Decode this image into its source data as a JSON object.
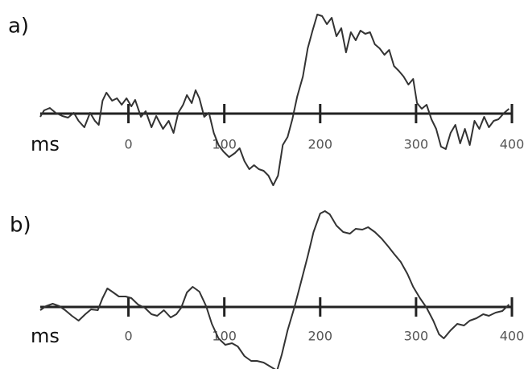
{
  "chart_data": [
    {
      "type": "line",
      "label": "a)",
      "xlabel": "ms",
      "color": "#333333",
      "xlim": [
        -92,
        400
      ],
      "ylim": [
        -100,
        130
      ],
      "xticks": [
        0,
        100,
        200,
        300,
        400
      ],
      "x": [
        -92,
        -88,
        -82,
        -76,
        -69,
        -63,
        -57,
        -52,
        -46,
        -40,
        -35,
        -31,
        -27,
        -23,
        -17,
        -12,
        -7,
        -2,
        3,
        7,
        13,
        18,
        24,
        29,
        36,
        42,
        47,
        52,
        57,
        61,
        66,
        70,
        74,
        79,
        84,
        89,
        94,
        99,
        105,
        111,
        116,
        121,
        126,
        131,
        136,
        141,
        146,
        151,
        156,
        161,
        166,
        171,
        176,
        182,
        187,
        192,
        197,
        202,
        207,
        212,
        217,
        222,
        227,
        232,
        237,
        242,
        247,
        252,
        257,
        262,
        267,
        272,
        277,
        282,
        287,
        292,
        297,
        301,
        306,
        311,
        316,
        321,
        326,
        331,
        336,
        341,
        346,
        351,
        356,
        361,
        366,
        371,
        376,
        381,
        386,
        392,
        397
      ],
      "values": [
        -4,
        4,
        7,
        1,
        -3,
        -5,
        1,
        -9,
        -17,
        1,
        -9,
        -14,
        16,
        26,
        16,
        19,
        11,
        19,
        9,
        17,
        -4,
        3,
        -17,
        -3,
        -19,
        -9,
        -24,
        1,
        11,
        23,
        13,
        29,
        19,
        -4,
        1,
        -24,
        -39,
        -47,
        -54,
        -49,
        -43,
        -59,
        -69,
        -64,
        -69,
        -71,
        -77,
        -89,
        -77,
        -39,
        -29,
        -7,
        21,
        46,
        81,
        103,
        123,
        121,
        111,
        119,
        96,
        106,
        76,
        101,
        91,
        103,
        99,
        101,
        86,
        81,
        73,
        79,
        59,
        53,
        46,
        36,
        43,
        13,
        6,
        11,
        -7,
        -19,
        -41,
        -44,
        -24,
        -14,
        -37,
        -19,
        -39,
        -9,
        -19,
        -4,
        -17,
        -9,
        -7,
        1,
        6
      ]
    },
    {
      "type": "line",
      "label": "b)",
      "xlabel": "ms",
      "color": "#333333",
      "xlim": [
        -92,
        400
      ],
      "ylim": [
        -77,
        125
      ],
      "xticks": [
        0,
        100,
        200,
        300,
        400
      ],
      "x": [
        -92,
        -86,
        -79,
        -72,
        -66,
        -59,
        -52,
        -45,
        -39,
        -32,
        -27,
        -22,
        -17,
        -10,
        -3,
        3,
        10,
        17,
        24,
        30,
        37,
        44,
        50,
        55,
        61,
        67,
        74,
        81,
        87,
        94,
        101,
        108,
        114,
        121,
        128,
        134,
        141,
        148,
        155,
        160,
        166,
        173,
        180,
        187,
        193,
        200,
        205,
        210,
        217,
        224,
        231,
        237,
        244,
        250,
        257,
        264,
        271,
        277,
        284,
        291,
        297,
        304,
        311,
        318,
        324,
        329,
        336,
        343,
        350,
        356,
        363,
        370,
        376,
        383,
        390,
        397
      ],
      "values": [
        -4,
        1,
        4,
        1,
        -4,
        -11,
        -17,
        -9,
        -3,
        -4,
        11,
        23,
        19,
        13,
        13,
        11,
        3,
        -1,
        -9,
        -11,
        -4,
        -13,
        -9,
        -1,
        18,
        25,
        19,
        1,
        -21,
        -39,
        -47,
        -45,
        -49,
        -61,
        -67,
        -67,
        -69,
        -74,
        -79,
        -59,
        -29,
        -1,
        31,
        63,
        93,
        116,
        119,
        115,
        101,
        93,
        91,
        97,
        96,
        99,
        93,
        85,
        75,
        66,
        56,
        41,
        25,
        11,
        -1,
        -17,
        -34,
        -39,
        -29,
        -21,
        -23,
        -17,
        -14,
        -9,
        -11,
        -7,
        -5,
        3
      ]
    }
  ]
}
